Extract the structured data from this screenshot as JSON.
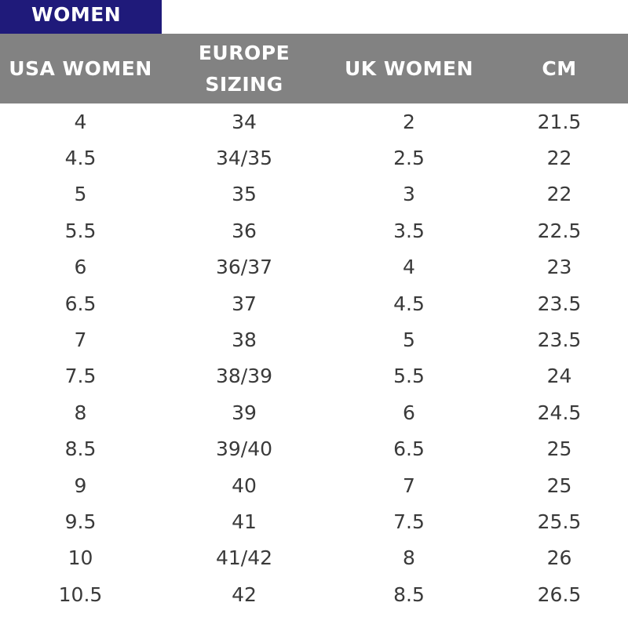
{
  "tab": {
    "label": "WOMEN"
  },
  "table": {
    "headers": [
      "USA WOMEN",
      "EUROPE\nSIZING",
      "UK WOMEN",
      "CM"
    ],
    "rows": [
      [
        "4",
        "34",
        "2",
        "21.5"
      ],
      [
        "4.5",
        "34/35",
        "2.5",
        "22"
      ],
      [
        "5",
        "35",
        "3",
        "22"
      ],
      [
        "5.5",
        "36",
        "3.5",
        "22.5"
      ],
      [
        "6",
        "36/37",
        "4",
        "23"
      ],
      [
        "6.5",
        "37",
        "4.5",
        "23.5"
      ],
      [
        "7",
        "38",
        "5",
        "23.5"
      ],
      [
        "7.5",
        "38/39",
        "5.5",
        "24"
      ],
      [
        "8",
        "39",
        "6",
        "24.5"
      ],
      [
        "8.5",
        "39/40",
        "6.5",
        "25"
      ],
      [
        "9",
        "40",
        "7",
        "25"
      ],
      [
        "9.5",
        "41",
        "7.5",
        "25.5"
      ],
      [
        "10",
        "41/42",
        "8",
        "26"
      ],
      [
        "10.5",
        "42",
        "8.5",
        "26.5"
      ]
    ]
  },
  "colors": {
    "tab_background": "#1f1a7a",
    "header_background": "#828282",
    "header_text": "#ffffff",
    "body_text": "#3a3a3a"
  }
}
